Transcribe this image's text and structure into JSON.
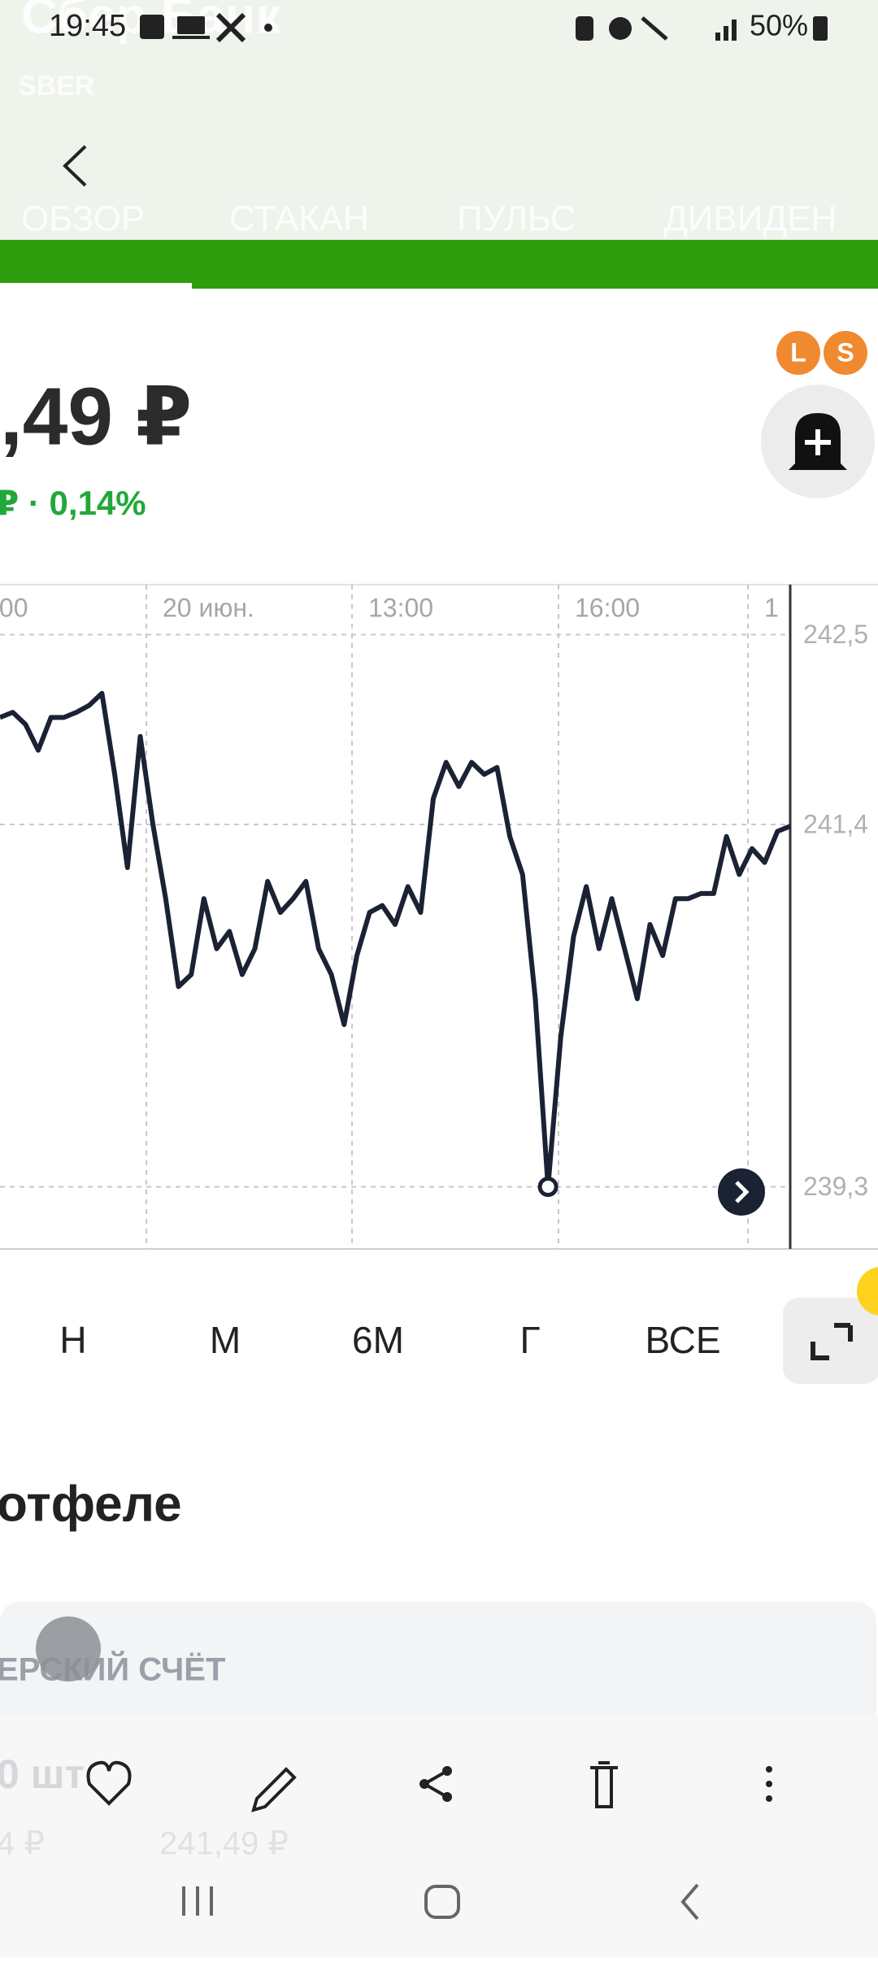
{
  "status_bar": {
    "time": "19:45",
    "battery": "50%"
  },
  "header": {
    "title": "Сбер Банк",
    "ticker": "SBER"
  },
  "tabs": [
    "ОБЗОР",
    "СТАКАН",
    "ПУЛЬС",
    "ДИВИДЕН"
  ],
  "price": {
    "value": ",49 ₽",
    "change": "₽ · 0,14%"
  },
  "chart": {
    "type": "line",
    "color": "#1a2233",
    "x_labels": [
      ":00",
      "20 июн.",
      "13:00",
      "16:00",
      "1"
    ],
    "values": [
      242.02,
      242.05,
      241.98,
      241.83,
      242.02,
      242.02,
      242.05,
      242.09,
      242.16,
      241.69,
      241.15,
      241.91,
      241.4,
      240.97,
      240.46,
      240.53,
      240.97,
      240.68,
      240.78,
      240.53,
      240.68,
      241.07,
      240.89,
      240.97,
      241.07,
      240.68,
      240.53,
      240.24,
      240.64,
      240.89,
      240.93,
      240.82,
      241.04,
      240.89,
      241.55,
      241.76,
      241.62,
      241.76,
      241.69,
      241.73,
      241.33,
      241.11,
      240.39,
      239.3,
      240.17,
      240.75,
      241.04,
      240.68,
      240.97,
      240.68,
      240.39,
      240.82,
      240.64,
      240.97,
      240.97,
      241.0,
      241.0,
      241.33,
      241.11,
      241.26,
      241.18,
      241.36,
      241.39
    ],
    "ylim": [
      238.94,
      242.79
    ],
    "yticks": [
      {
        "value": 242.5,
        "label": "242,5"
      },
      {
        "value": 241.4,
        "label": "241,4"
      },
      {
        "value": 239.3,
        "label": "239,3"
      }
    ]
  },
  "periods": [
    "Н",
    "М",
    "6М",
    "Г",
    "ВСЕ"
  ],
  "section": {
    "title": "отфеле",
    "account": "ЕРСКИЙ СЧЁТ",
    "qty": "0 шт",
    "avg": "4 ₽",
    "current": "241,49 ₽"
  }
}
